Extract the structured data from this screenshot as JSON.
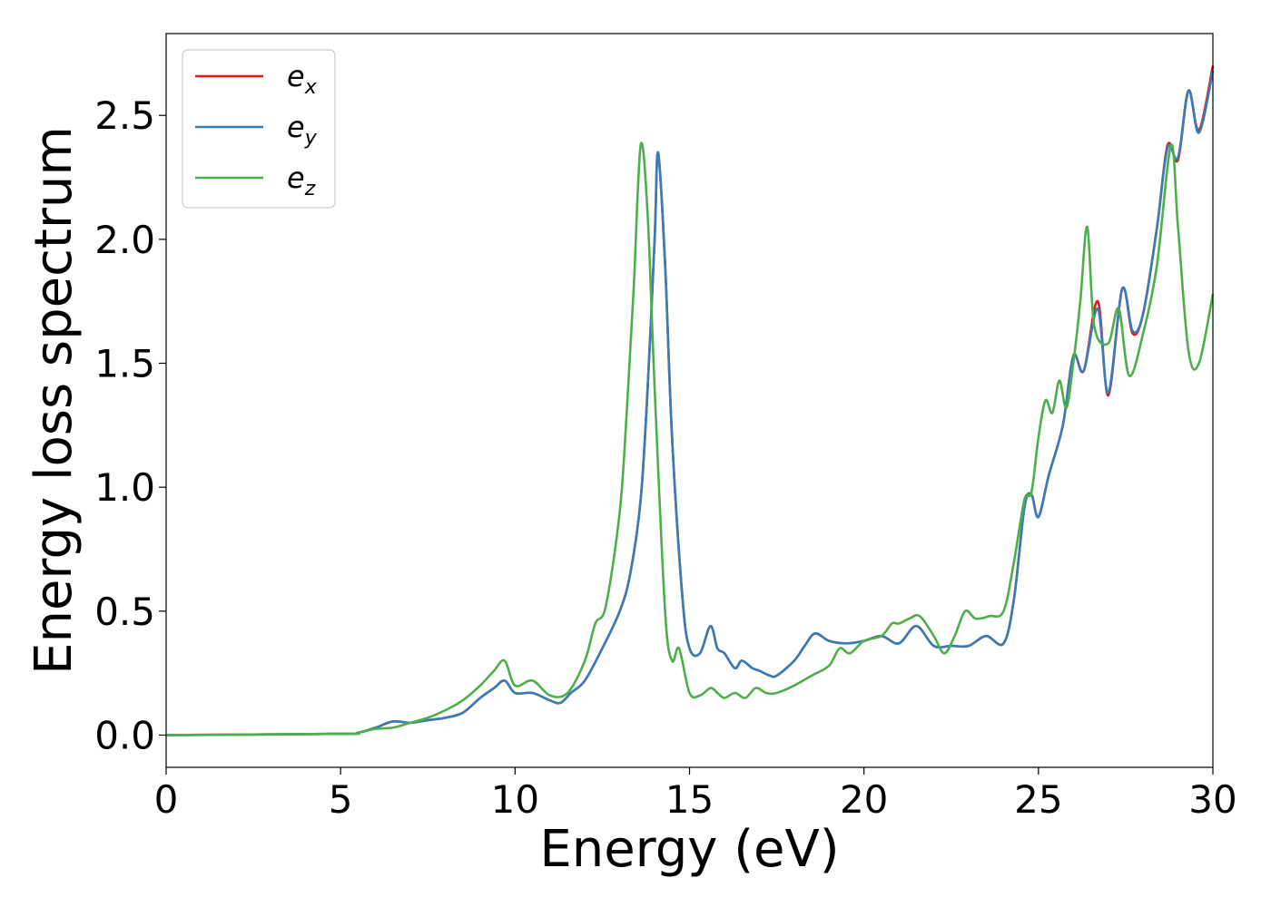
{
  "chart_data": {
    "type": "line",
    "xlabel": "Energy (eV)",
    "ylabel": "Energy loss spectrum",
    "xlim": [
      0,
      30
    ],
    "ylim": [
      -0.13,
      2.83
    ],
    "xticks": [
      0,
      5,
      10,
      15,
      20,
      25,
      30
    ],
    "xtick_labels": [
      "0",
      "5",
      "10",
      "15",
      "20",
      "25",
      "30"
    ],
    "yticks": [
      0.0,
      0.5,
      1.0,
      1.5,
      2.0,
      2.5
    ],
    "ytick_labels": [
      "0.0",
      "0.5",
      "1.0",
      "1.5",
      "2.0",
      "2.5"
    ],
    "grid": false,
    "legend_position": "top-left",
    "series": [
      {
        "name": "e_x",
        "legend_base": "e",
        "legend_sub": "x",
        "color": "#e41a1c",
        "x": [
          0,
          5,
          5.5,
          6,
          6.5,
          7,
          7.5,
          8,
          8.5,
          9,
          9.4,
          9.7,
          10,
          10.5,
          11,
          11.3,
          11.6,
          12,
          12.5,
          13,
          13.3,
          13.6,
          13.8,
          14,
          14.1,
          14.3,
          14.5,
          14.8,
          15,
          15.3,
          15.6,
          15.8,
          16,
          16.3,
          16.5,
          16.8,
          17,
          17.3,
          17.5,
          18,
          18.3,
          18.6,
          19,
          19.5,
          20,
          20.5,
          21,
          21.5,
          22,
          22.5,
          23,
          23.5,
          24,
          24.3,
          24.6,
          24.8,
          25,
          25.3,
          25.7,
          26,
          26.3,
          26.7,
          27,
          27.4,
          27.7,
          28,
          28.4,
          28.7,
          29,
          29.3,
          29.6,
          30
        ],
        "values": [
          0,
          0.005,
          0.01,
          0.03,
          0.055,
          0.05,
          0.06,
          0.07,
          0.09,
          0.15,
          0.19,
          0.22,
          0.17,
          0.17,
          0.14,
          0.13,
          0.17,
          0.22,
          0.35,
          0.5,
          0.65,
          0.95,
          1.4,
          2.0,
          2.35,
          1.9,
          1.2,
          0.55,
          0.35,
          0.33,
          0.44,
          0.35,
          0.33,
          0.27,
          0.3,
          0.27,
          0.26,
          0.24,
          0.24,
          0.3,
          0.36,
          0.41,
          0.38,
          0.37,
          0.38,
          0.4,
          0.37,
          0.44,
          0.36,
          0.36,
          0.36,
          0.4,
          0.37,
          0.55,
          0.92,
          0.97,
          0.88,
          1.05,
          1.25,
          1.53,
          1.47,
          1.75,
          1.37,
          1.8,
          1.62,
          1.7,
          2.05,
          2.38,
          2.32,
          2.6,
          2.44,
          2.7
        ]
      },
      {
        "name": "e_y",
        "legend_base": "e",
        "legend_sub": "y",
        "color": "#377eb8",
        "x": [
          0,
          5,
          5.5,
          6,
          6.5,
          7,
          7.5,
          8,
          8.5,
          9,
          9.4,
          9.7,
          10,
          10.5,
          11,
          11.3,
          11.6,
          12,
          12.5,
          13,
          13.3,
          13.6,
          13.8,
          14,
          14.1,
          14.3,
          14.5,
          14.8,
          15,
          15.3,
          15.6,
          15.8,
          16,
          16.3,
          16.5,
          16.8,
          17,
          17.3,
          17.5,
          18,
          18.3,
          18.6,
          19,
          19.5,
          20,
          20.5,
          21,
          21.5,
          22,
          22.5,
          23,
          23.5,
          24,
          24.3,
          24.6,
          24.8,
          25,
          25.3,
          25.7,
          26,
          26.3,
          26.7,
          27,
          27.4,
          27.7,
          28,
          28.4,
          28.7,
          29,
          29.3,
          29.6,
          30
        ],
        "values": [
          0,
          0.005,
          0.01,
          0.03,
          0.055,
          0.05,
          0.06,
          0.07,
          0.09,
          0.15,
          0.19,
          0.22,
          0.17,
          0.17,
          0.14,
          0.13,
          0.17,
          0.22,
          0.35,
          0.5,
          0.65,
          0.95,
          1.4,
          2.0,
          2.35,
          1.9,
          1.2,
          0.55,
          0.35,
          0.33,
          0.44,
          0.35,
          0.33,
          0.27,
          0.3,
          0.27,
          0.26,
          0.24,
          0.24,
          0.3,
          0.36,
          0.41,
          0.38,
          0.37,
          0.38,
          0.4,
          0.37,
          0.44,
          0.36,
          0.36,
          0.36,
          0.4,
          0.37,
          0.55,
          0.92,
          0.97,
          0.88,
          1.05,
          1.25,
          1.53,
          1.47,
          1.72,
          1.38,
          1.8,
          1.63,
          1.7,
          2.05,
          2.37,
          2.33,
          2.6,
          2.43,
          2.68
        ]
      },
      {
        "name": "e_z",
        "legend_base": "e",
        "legend_sub": "z",
        "color": "#4daf4a",
        "x": [
          0,
          5,
          5.5,
          6,
          6.5,
          7,
          7.5,
          8,
          8.5,
          9,
          9.4,
          9.7,
          10,
          10.5,
          11,
          11.5,
          12,
          12.3,
          12.6,
          13,
          13.2,
          13.4,
          13.6,
          13.8,
          14,
          14.3,
          14.5,
          14.7,
          15,
          15.3,
          15.6,
          15.8,
          16,
          16.3,
          16.6,
          16.9,
          17.2,
          17.5,
          18,
          18.5,
          19,
          19.3,
          19.6,
          20,
          20.5,
          20.8,
          21,
          21.3,
          21.6,
          22,
          22.3,
          22.6,
          22.9,
          23.2,
          23.6,
          24,
          24.3,
          24.6,
          24.8,
          25,
          25.2,
          25.4,
          25.6,
          25.8,
          26,
          26.2,
          26.4,
          26.6,
          27,
          27.3,
          27.6,
          28,
          28.4,
          28.8,
          29,
          29.3,
          29.6,
          30
        ],
        "values": [
          0,
          0.005,
          0.01,
          0.025,
          0.03,
          0.05,
          0.07,
          0.1,
          0.14,
          0.2,
          0.26,
          0.3,
          0.2,
          0.22,
          0.16,
          0.17,
          0.3,
          0.45,
          0.52,
          0.9,
          1.3,
          1.8,
          2.38,
          2.1,
          1.4,
          0.5,
          0.3,
          0.35,
          0.17,
          0.16,
          0.19,
          0.17,
          0.15,
          0.17,
          0.15,
          0.19,
          0.17,
          0.17,
          0.2,
          0.24,
          0.28,
          0.35,
          0.33,
          0.38,
          0.4,
          0.45,
          0.45,
          0.47,
          0.48,
          0.4,
          0.33,
          0.4,
          0.5,
          0.47,
          0.48,
          0.5,
          0.7,
          0.95,
          0.98,
          1.2,
          1.35,
          1.3,
          1.43,
          1.32,
          1.5,
          1.75,
          2.05,
          1.65,
          1.58,
          1.72,
          1.45,
          1.62,
          1.9,
          2.38,
          2.05,
          1.55,
          1.5,
          1.78
        ]
      }
    ]
  }
}
